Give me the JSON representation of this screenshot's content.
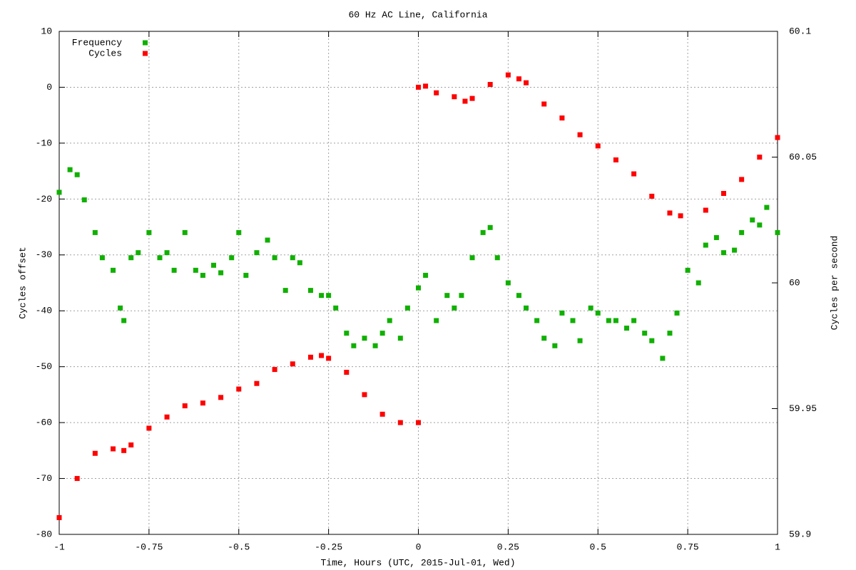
{
  "chart_data": {
    "type": "scatter",
    "title": "60 Hz AC Line, California",
    "xlabel": "Time, Hours (UTC, 2015-Jul-01, Wed)",
    "ylabel": "Cycles offset",
    "y2label": "Cycles per second",
    "xlim": [
      -1,
      1
    ],
    "xticks": [
      -1,
      -0.75,
      -0.5,
      -0.25,
      0,
      0.25,
      0.5,
      0.75,
      1
    ],
    "ylim": [
      -80,
      10
    ],
    "yticks": [
      -80,
      -70,
      -60,
      -50,
      -40,
      -30,
      -20,
      -10,
      0,
      10
    ],
    "y2lim": [
      59.9,
      60.1
    ],
    "y2ticks": [
      59.9,
      59.95,
      60,
      60.05,
      60.1
    ],
    "grid": true,
    "legend": "top-left",
    "series": [
      {
        "name": "Frequency",
        "color": "#10b000",
        "axis": "y2",
        "x": [
          -1,
          -0.97,
          -0.95,
          -0.93,
          -0.9,
          -0.88,
          -0.85,
          -0.83,
          -0.82,
          -0.8,
          -0.78,
          -0.75,
          -0.72,
          -0.7,
          -0.68,
          -0.65,
          -0.62,
          -0.6,
          -0.57,
          -0.55,
          -0.52,
          -0.5,
          -0.48,
          -0.45,
          -0.42,
          -0.4,
          -0.37,
          -0.35,
          -0.33,
          -0.3,
          -0.27,
          -0.25,
          -0.23,
          -0.2,
          -0.18,
          -0.15,
          -0.12,
          -0.1,
          -0.08,
          -0.05,
          -0.03,
          0,
          0.02,
          0.05,
          0.08,
          0.1,
          0.12,
          0.15,
          0.18,
          0.2,
          0.22,
          0.25,
          0.28,
          0.3,
          0.33,
          0.35,
          0.38,
          0.4,
          0.43,
          0.45,
          0.48,
          0.5,
          0.53,
          0.55,
          0.58,
          0.6,
          0.63,
          0.65,
          0.68,
          0.7,
          0.72,
          0.75,
          0.78,
          0.8,
          0.83,
          0.85,
          0.88,
          0.9,
          0.93,
          0.95,
          0.97,
          1
        ],
        "values": [
          60.036,
          60.045,
          60.043,
          60.033,
          60.02,
          60.01,
          60.005,
          59.99,
          59.985,
          60.01,
          60.012,
          60.02,
          60.01,
          60.012,
          60.005,
          60.02,
          60.005,
          60.003,
          60.007,
          60.004,
          60.01,
          60.02,
          60.003,
          60.012,
          60.017,
          60.01,
          59.997,
          60.01,
          60.008,
          59.997,
          59.995,
          59.995,
          59.99,
          59.98,
          59.975,
          59.978,
          59.975,
          59.98,
          59.985,
          59.978,
          59.99,
          59.998,
          60.003,
          59.985,
          59.995,
          59.99,
          59.995,
          60.01,
          60.02,
          60.022,
          60.01,
          60.0,
          59.995,
          59.99,
          59.985,
          59.978,
          59.975,
          59.988,
          59.985,
          59.977,
          59.99,
          59.988,
          59.985,
          59.985,
          59.982,
          59.985,
          59.98,
          59.977,
          59.97,
          59.98,
          59.988,
          60.005,
          60.0,
          60.015,
          60.018,
          60.012,
          60.013,
          60.02,
          60.025,
          60.023,
          60.03,
          60.02
        ]
      },
      {
        "name": "Cycles",
        "color": "#ff0000",
        "axis": "y",
        "x": [
          -1,
          -0.95,
          -0.9,
          -0.85,
          -0.82,
          -0.8,
          -0.75,
          -0.7,
          -0.65,
          -0.6,
          -0.55,
          -0.5,
          -0.45,
          -0.4,
          -0.35,
          -0.3,
          -0.27,
          -0.25,
          -0.2,
          -0.15,
          -0.1,
          -0.05,
          0,
          0,
          0.02,
          0.05,
          0.1,
          0.13,
          0.15,
          0.2,
          0.25,
          0.28,
          0.3,
          0.35,
          0.4,
          0.45,
          0.5,
          0.55,
          0.6,
          0.65,
          0.7,
          0.73,
          0.8,
          0.85,
          0.9,
          0.95,
          1
        ],
        "values": [
          -77,
          -70,
          -65.5,
          -64.7,
          -65,
          -64,
          -61,
          -59,
          -57,
          -56.5,
          -55.5,
          -54,
          -53,
          -50.5,
          -49.5,
          -48.3,
          -48,
          -48.5,
          -51,
          -55,
          -58.5,
          -60,
          -60,
          0,
          0.2,
          -1,
          -1.7,
          -2.5,
          -2,
          0.5,
          2.2,
          1.5,
          0.8,
          -3,
          -5.5,
          -8.5,
          -10.5,
          -13,
          -15.5,
          -19.5,
          -22.5,
          -23,
          -22,
          -19,
          -16.5,
          -12.5,
          -9
        ]
      }
    ]
  }
}
